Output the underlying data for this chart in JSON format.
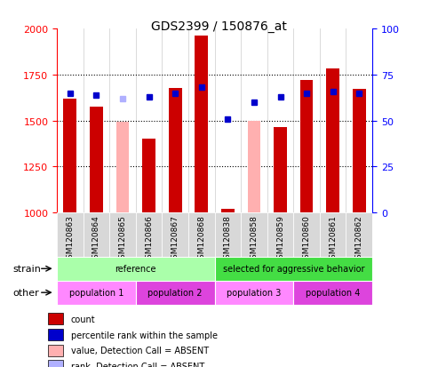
{
  "title": "GDS2399 / 150876_at",
  "samples": [
    "GSM120863",
    "GSM120864",
    "GSM120865",
    "GSM120866",
    "GSM120867",
    "GSM120868",
    "GSM120838",
    "GSM120858",
    "GSM120859",
    "GSM120860",
    "GSM120861",
    "GSM120862"
  ],
  "bar_values": [
    1620,
    1575,
    1495,
    1400,
    1675,
    1960,
    1020,
    1500,
    1465,
    1720,
    1785,
    1670
  ],
  "bar_absent": [
    false,
    false,
    true,
    false,
    false,
    false,
    false,
    true,
    false,
    false,
    false,
    false
  ],
  "percentile_values": [
    65,
    64,
    62,
    63,
    65,
    68,
    51,
    60,
    63,
    65,
    66,
    65
  ],
  "percentile_absent": [
    false,
    false,
    true,
    false,
    false,
    false,
    false,
    false,
    false,
    false,
    false,
    false
  ],
  "bar_color_present": "#cc0000",
  "bar_color_absent": "#ffb0b0",
  "dot_color_present": "#0000cc",
  "dot_color_absent": "#b0b0ff",
  "ylim_left": [
    1000,
    2000
  ],
  "ylim_right": [
    0,
    100
  ],
  "yticks_left": [
    1000,
    1250,
    1500,
    1750,
    2000
  ],
  "yticks_right": [
    0,
    25,
    50,
    75,
    100
  ],
  "strain_groups": [
    {
      "label": "reference",
      "start": 0,
      "end": 6,
      "color": "#aaffaa"
    },
    {
      "label": "selected for aggressive behavior",
      "start": 6,
      "end": 12,
      "color": "#44dd44"
    }
  ],
  "other_groups": [
    {
      "label": "population 1",
      "start": 0,
      "end": 3,
      "color": "#ff88ff"
    },
    {
      "label": "population 2",
      "start": 3,
      "end": 6,
      "color": "#dd44dd"
    },
    {
      "label": "population 3",
      "start": 6,
      "end": 9,
      "color": "#ff88ff"
    },
    {
      "label": "population 4",
      "start": 9,
      "end": 12,
      "color": "#dd44dd"
    }
  ],
  "strain_label": "strain",
  "other_label": "other",
  "legend_items": [
    {
      "label": "count",
      "color": "#cc0000",
      "marker": "s"
    },
    {
      "label": "percentile rank within the sample",
      "color": "#0000cc",
      "marker": "s"
    },
    {
      "label": "value, Detection Call = ABSENT",
      "color": "#ffb0b0",
      "marker": "s"
    },
    {
      "label": "rank, Detection Call = ABSENT",
      "color": "#b0b0ff",
      "marker": "s"
    }
  ]
}
